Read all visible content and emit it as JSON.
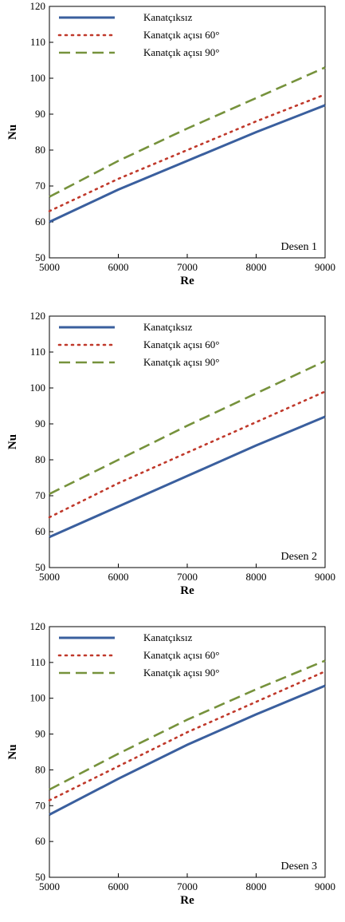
{
  "chart_data": [
    {
      "type": "line",
      "annotation": "Desen 1",
      "xlabel": "Re",
      "ylabel": "Nu",
      "xlim": [
        5000,
        9000
      ],
      "ylim": [
        50,
        120
      ],
      "xticks": [
        5000,
        6000,
        7000,
        8000,
        9000
      ],
      "yticks": [
        50,
        60,
        70,
        80,
        90,
        100,
        110,
        120
      ],
      "legend_position": "top-left",
      "grid": false,
      "x": [
        5000,
        6000,
        7000,
        8000,
        9000
      ],
      "series": [
        {
          "name": "Kanatçıksız",
          "values": [
            60,
            69,
            77,
            85,
            92.5
          ],
          "color": "#3a5f9e",
          "style": "solid"
        },
        {
          "name": "Kanatçık açısı 60°",
          "values": [
            63,
            72,
            80,
            88,
            95.5
          ],
          "color": "#c0392b",
          "style": "dotted"
        },
        {
          "name": "Kanatçık açısı 90°",
          "values": [
            67,
            77,
            86,
            94.5,
            103
          ],
          "color": "#76923c",
          "style": "dashed"
        }
      ]
    },
    {
      "type": "line",
      "annotation": "Desen 2",
      "xlabel": "Re",
      "ylabel": "Nu",
      "xlim": [
        5000,
        9000
      ],
      "ylim": [
        50,
        120
      ],
      "xticks": [
        5000,
        6000,
        7000,
        8000,
        9000
      ],
      "yticks": [
        50,
        60,
        70,
        80,
        90,
        100,
        110,
        120
      ],
      "legend_position": "top-left",
      "grid": false,
      "x": [
        5000,
        6000,
        7000,
        8000,
        9000
      ],
      "series": [
        {
          "name": "Kanatçıksız",
          "values": [
            58.5,
            67,
            75.5,
            84,
            92
          ],
          "color": "#3a5f9e",
          "style": "solid"
        },
        {
          "name": "Kanatçık açısı 60°",
          "values": [
            64,
            73.5,
            82,
            90.5,
            99
          ],
          "color": "#c0392b",
          "style": "dotted"
        },
        {
          "name": "Kanatçık açısı 90°",
          "values": [
            70.5,
            80,
            89.5,
            98.5,
            107.5
          ],
          "color": "#76923c",
          "style": "dashed"
        }
      ]
    },
    {
      "type": "line",
      "annotation": "Desen 3",
      "xlabel": "Re",
      "ylabel": "Nu",
      "xlim": [
        5000,
        9000
      ],
      "ylim": [
        50,
        120
      ],
      "xticks": [
        5000,
        6000,
        7000,
        8000,
        9000
      ],
      "yticks": [
        50,
        60,
        70,
        80,
        90,
        100,
        110,
        120
      ],
      "legend_position": "top-left",
      "grid": false,
      "x": [
        5000,
        6000,
        7000,
        8000,
        9000
      ],
      "series": [
        {
          "name": "Kanatçıksız",
          "values": [
            67.5,
            77.5,
            87,
            95.5,
            103.5
          ],
          "color": "#3a5f9e",
          "style": "solid"
        },
        {
          "name": "Kanatçık açısı 60°",
          "values": [
            71.5,
            81,
            90.5,
            99,
            107.5
          ],
          "color": "#c0392b",
          "style": "dotted"
        },
        {
          "name": "Kanatçık açısı 90°",
          "values": [
            74.5,
            84.5,
            94,
            102.5,
            110.5
          ],
          "color": "#76923c",
          "style": "dashed"
        }
      ]
    }
  ]
}
